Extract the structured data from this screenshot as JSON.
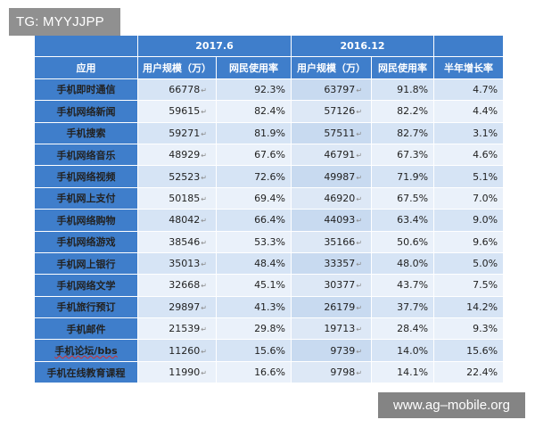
{
  "watermarks": {
    "top": "TG: MYYJJPP",
    "bottom": "www.ag–mobile.org"
  },
  "table": {
    "group_headers": [
      "2017.6",
      "2016.12"
    ],
    "columns": [
      "应用",
      "用户规模（万）",
      "网民使用率",
      "用户规模（万）",
      "网民使用率",
      "半年增长率"
    ],
    "rows": [
      {
        "app": "手机即时通信",
        "users_2017": "66778",
        "rate_2017": "92.3%",
        "users_2016": "63797",
        "rate_2016": "91.8%",
        "growth": "4.7%"
      },
      {
        "app": "手机网络新闻",
        "users_2017": "59615",
        "rate_2017": "82.4%",
        "users_2016": "57126",
        "rate_2016": "82.2%",
        "growth": "4.4%"
      },
      {
        "app": "手机搜索",
        "users_2017": "59271",
        "rate_2017": "81.9%",
        "users_2016": "57511",
        "rate_2016": "82.7%",
        "growth": "3.1%"
      },
      {
        "app": "手机网络音乐",
        "users_2017": "48929",
        "rate_2017": "67.6%",
        "users_2016": "46791",
        "rate_2016": "67.3%",
        "growth": "4.6%"
      },
      {
        "app": "手机网络视频",
        "users_2017": "52523",
        "rate_2017": "72.6%",
        "users_2016": "49987",
        "rate_2016": "71.9%",
        "growth": "5.1%"
      },
      {
        "app": "手机网上支付",
        "users_2017": "50185",
        "rate_2017": "69.4%",
        "users_2016": "46920",
        "rate_2016": "67.5%",
        "growth": "7.0%"
      },
      {
        "app": "手机网络购物",
        "users_2017": "48042",
        "rate_2017": "66.4%",
        "users_2016": "44093",
        "rate_2016": "63.4%",
        "growth": "9.0%"
      },
      {
        "app": "手机网络游戏",
        "users_2017": "38546",
        "rate_2017": "53.3%",
        "users_2016": "35166",
        "rate_2016": "50.6%",
        "growth": "9.6%"
      },
      {
        "app": "手机网上银行",
        "users_2017": "35013",
        "rate_2017": "48.4%",
        "users_2016": "33357",
        "rate_2016": "48.0%",
        "growth": "5.0%"
      },
      {
        "app": "手机网络文学",
        "users_2017": "32668",
        "rate_2017": "45.1%",
        "users_2016": "30377",
        "rate_2016": "43.7%",
        "growth": "7.5%"
      },
      {
        "app": "手机旅行预订",
        "users_2017": "29897",
        "rate_2017": "41.3%",
        "users_2016": "26179",
        "rate_2016": "37.7%",
        "growth": "14.2%"
      },
      {
        "app": "手机邮件",
        "users_2017": "21539",
        "rate_2017": "29.8%",
        "users_2016": "19713",
        "rate_2016": "28.4%",
        "growth": "9.3%"
      },
      {
        "app": "手机论坛/bbs",
        "users_2017": "11260",
        "rate_2017": "15.6%",
        "users_2016": "9739",
        "rate_2016": "14.0%",
        "growth": "15.6%"
      },
      {
        "app": "手机在线教育课程",
        "users_2017": "11990",
        "rate_2017": "16.6%",
        "users_2016": "9798",
        "rate_2016": "14.1%",
        "growth": "22.4%"
      }
    ]
  },
  "colors": {
    "header_blue": "#3f7ecb",
    "row_light": "#eaf1fa",
    "row_mid": "#d6e4f5"
  }
}
